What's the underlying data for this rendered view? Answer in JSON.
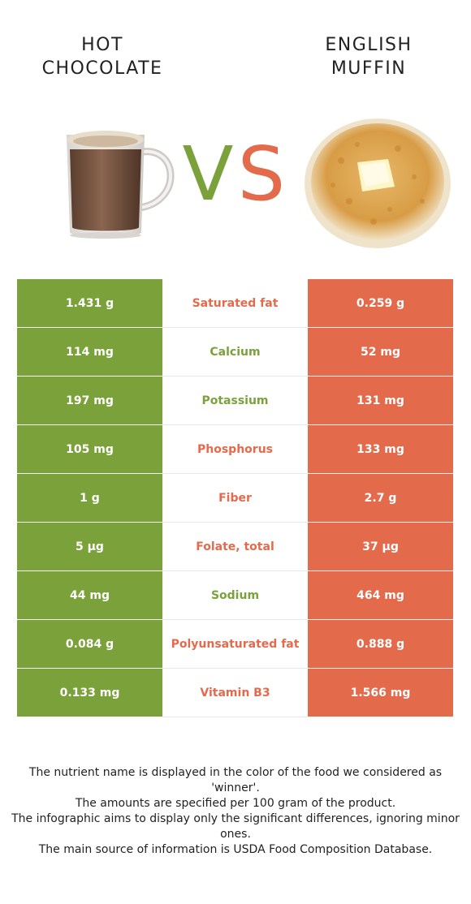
{
  "header": {
    "left_title": [
      "HOT",
      "CHOCOLATE"
    ],
    "right_title": [
      "ENGLISH",
      "MUFFIN"
    ],
    "vs_v": "V",
    "vs_s": "S"
  },
  "colors": {
    "left": "#7ba23a",
    "right": "#e46a4c"
  },
  "rows": [
    {
      "left": "1.431 g",
      "nutrient": "Saturated fat",
      "right": "0.259 g",
      "winner": "right"
    },
    {
      "left": "114 mg",
      "nutrient": "Calcium",
      "right": "52 mg",
      "winner": "left"
    },
    {
      "left": "197 mg",
      "nutrient": "Potassium",
      "right": "131 mg",
      "winner": "left"
    },
    {
      "left": "105 mg",
      "nutrient": "Phosphorus",
      "right": "133 mg",
      "winner": "right"
    },
    {
      "left": "1 g",
      "nutrient": "Fiber",
      "right": "2.7 g",
      "winner": "right"
    },
    {
      "left": "5 µg",
      "nutrient": "Folate, total",
      "right": "37 µg",
      "winner": "right"
    },
    {
      "left": "44 mg",
      "nutrient": "Sodium",
      "right": "464 mg",
      "winner": "left"
    },
    {
      "left": "0.084 g",
      "nutrient": "Polyunsaturated fat",
      "right": "0.888 g",
      "winner": "right"
    },
    {
      "left": "0.133 mg",
      "nutrient": "Vitamin B3",
      "right": "1.566 mg",
      "winner": "right"
    }
  ],
  "footer": [
    "The nutrient name is displayed in the color of the food we considered as 'winner'.",
    "The amounts are specified per 100 gram of the product.",
    "The infographic aims to display only the significant differences, ignoring minor ones.",
    "The main source of information is USDA Food Composition Database."
  ]
}
